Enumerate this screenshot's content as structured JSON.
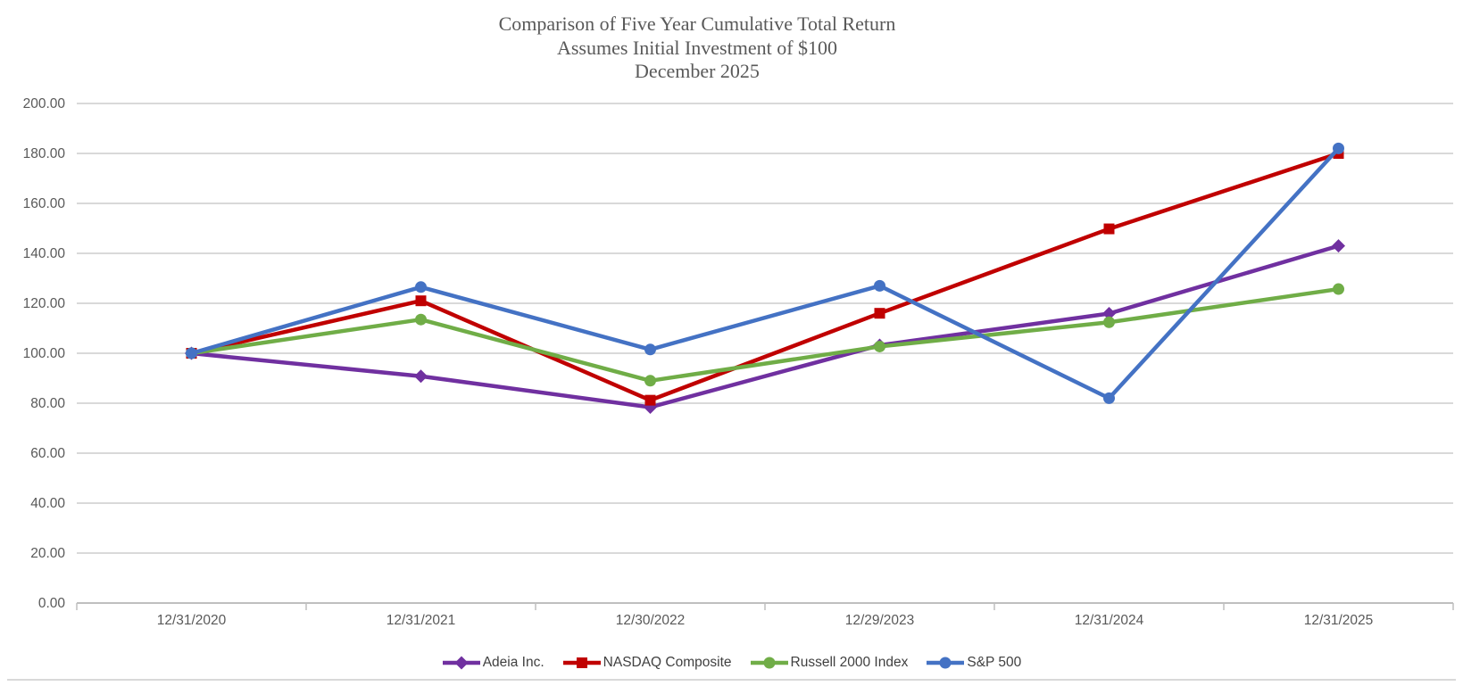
{
  "title": {
    "line1": "Comparison of Five Year Cumulative Total Return",
    "line2": "Assumes Initial Investment of $100",
    "line3": "December 2025"
  },
  "colors": {
    "title_text": "#595959",
    "axis_label_text": "#595959",
    "legend_text": "#404040",
    "gridline": "#d9d9d9",
    "axis_line": "#bfbfbf",
    "background": "#ffffff"
  },
  "chart_data": {
    "type": "line",
    "title": "Comparison of Five Year Cumulative Total Return",
    "subtitle": "Assumes Initial Investment of $100",
    "period_label": "December 2025",
    "x": [
      "12/31/2020",
      "12/31/2021",
      "12/30/2022",
      "12/29/2023",
      "12/31/2024",
      "12/31/2025"
    ],
    "series": [
      {
        "name": "Adeia Inc.",
        "color": "#7030a0",
        "marker": "diamond",
        "values": [
          100.0,
          90.8,
          78.4,
          103.2,
          115.9,
          143.0
        ]
      },
      {
        "name": "NASDAQ Composite",
        "color": "#c00000",
        "marker": "square",
        "values": [
          100.0,
          121.0,
          81.2,
          116.0,
          149.8,
          180.0
        ]
      },
      {
        "name": "Russell 2000 Index",
        "color": "#70ad47",
        "marker": "circle",
        "values": [
          100.0,
          113.5,
          89.0,
          102.7,
          112.4,
          125.7
        ]
      },
      {
        "name": "S&P 500",
        "color": "#4472c4",
        "marker": "circle",
        "values": [
          100.0,
          126.5,
          101.5,
          127.0,
          82.0,
          182.0
        ]
      }
    ],
    "ylim": [
      0,
      200
    ],
    "ytick_step": 20,
    "ytick_labels": [
      "0.00",
      "20.00",
      "40.00",
      "60.00",
      "80.00",
      "100.00",
      "120.00",
      "140.00",
      "160.00",
      "180.00",
      "200.00"
    ],
    "grid": true,
    "legend_position": "bottom"
  }
}
